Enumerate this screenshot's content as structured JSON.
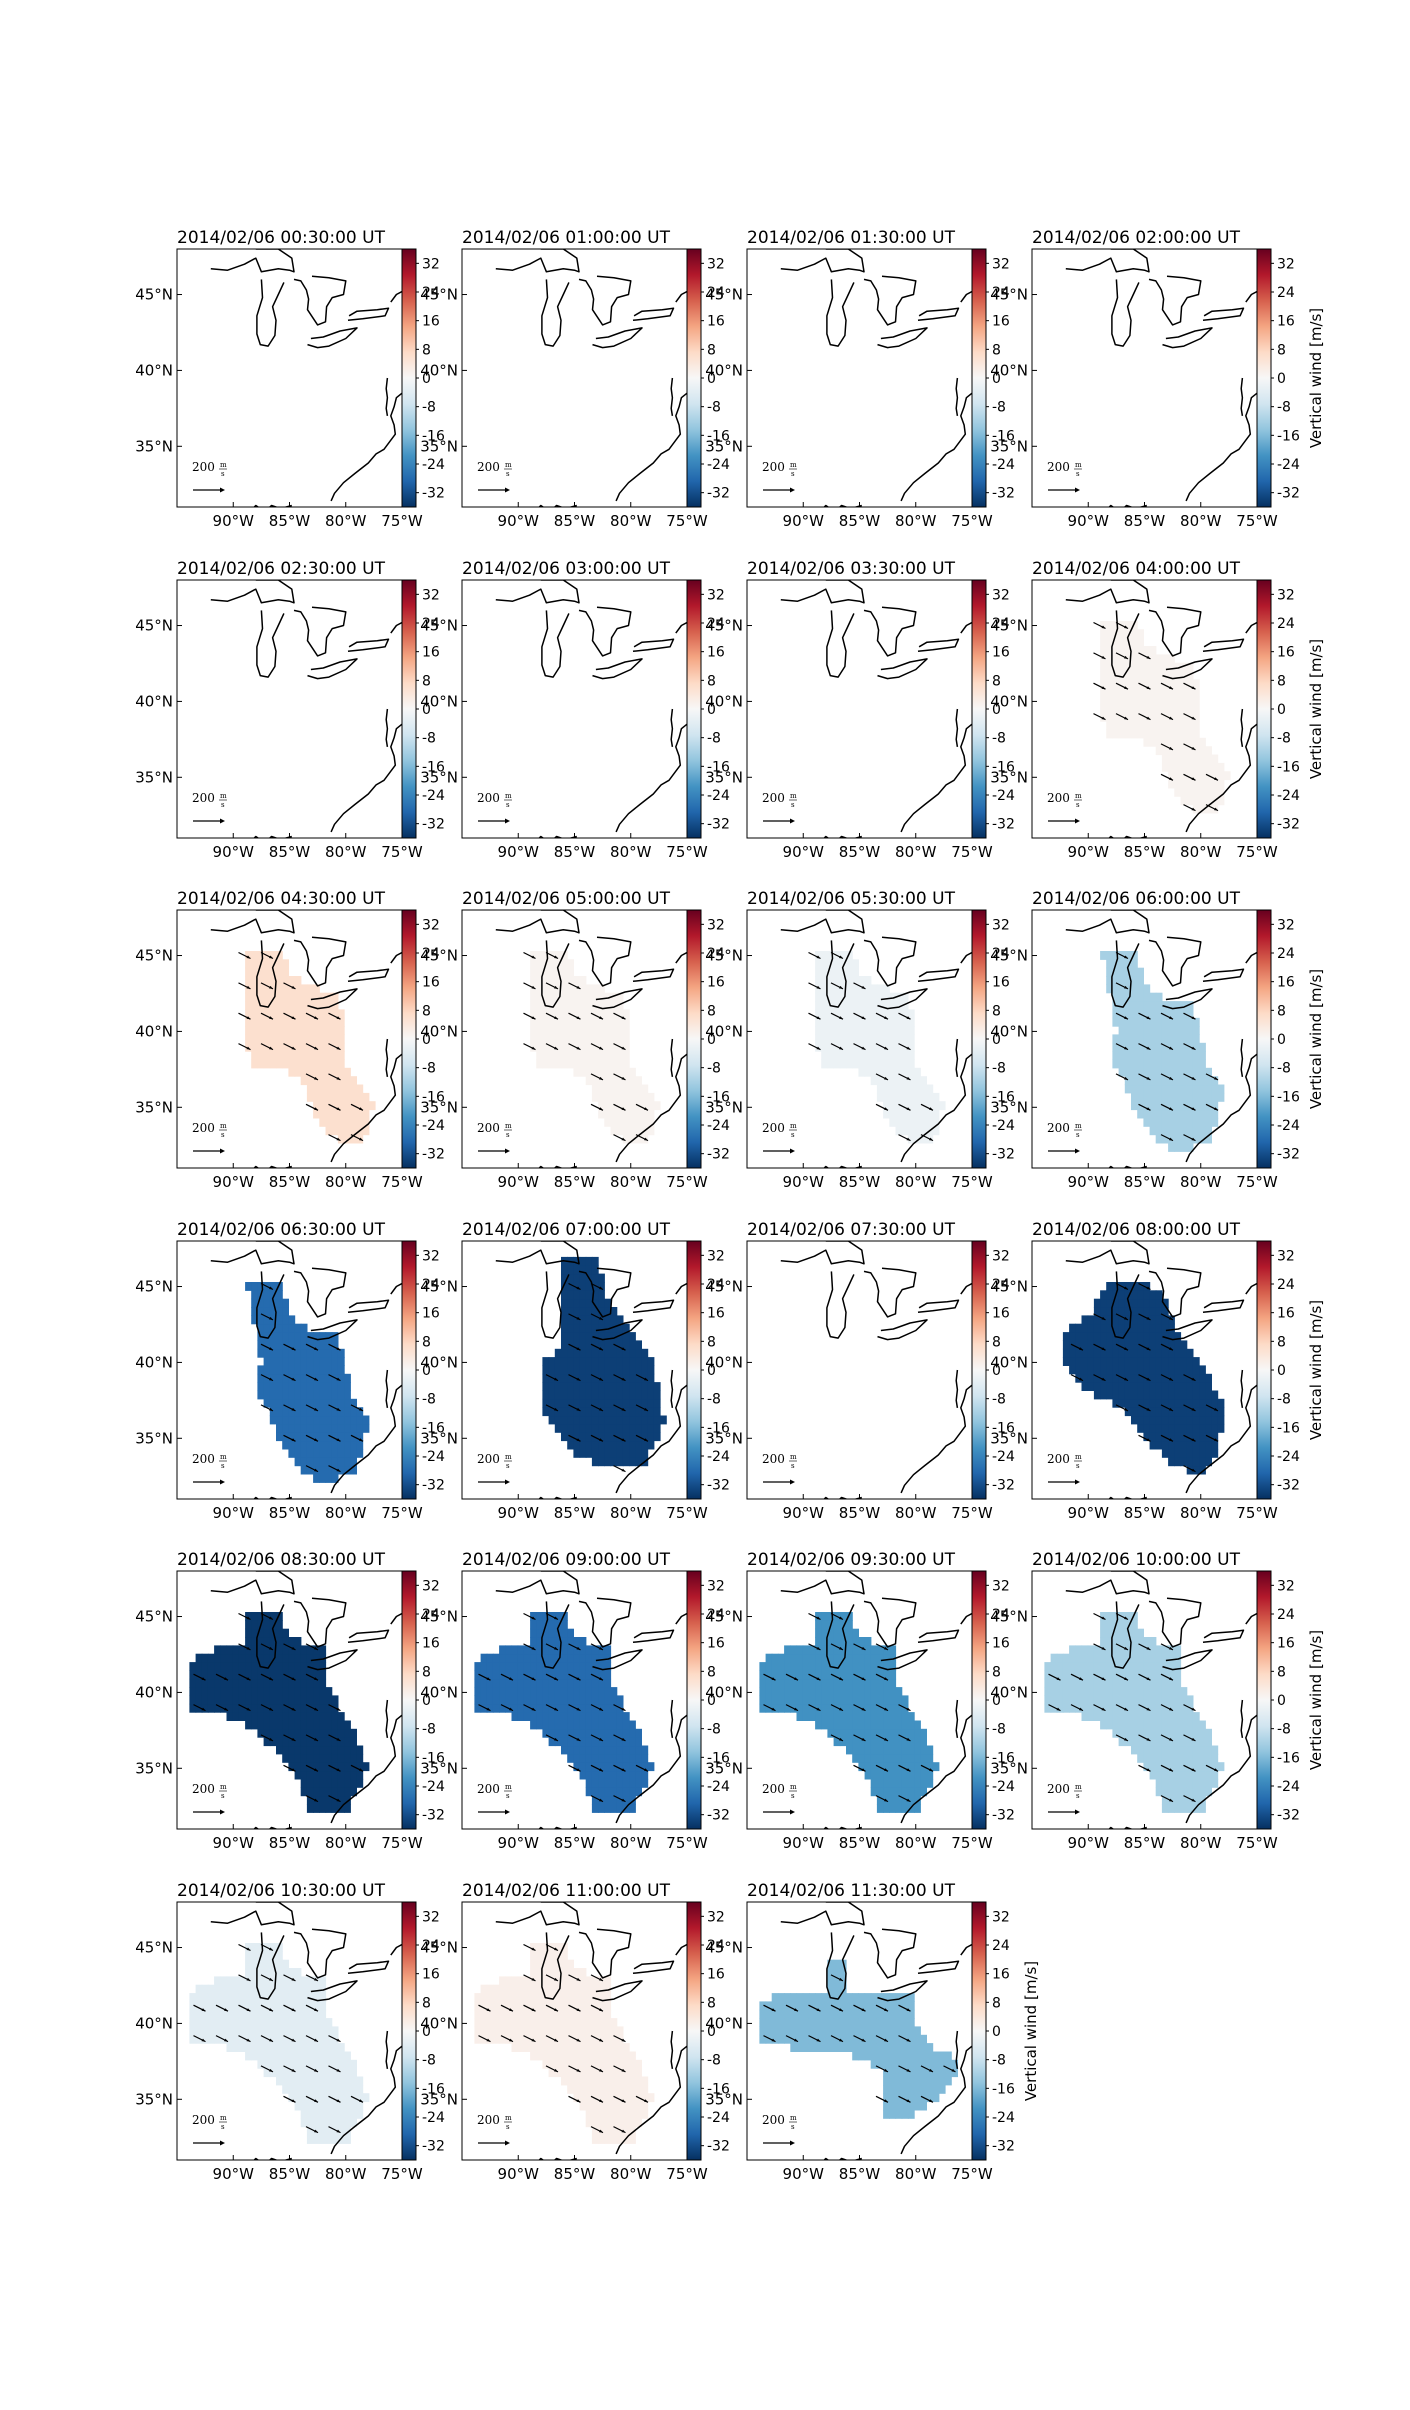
{
  "figure": {
    "colorbar_label": "Vertical wind [m/s]",
    "colorbar_ticks": [
      32,
      24,
      16,
      8,
      0,
      -8,
      -16,
      -24,
      -32
    ],
    "vrange": [
      -36,
      36
    ],
    "colormap": [
      "#053061",
      "#2166ac",
      "#4393c3",
      "#92c5de",
      "#d1e5f0",
      "#f7f7f7",
      "#fddbc7",
      "#f4a582",
      "#d6604d",
      "#b2182b",
      "#67001f"
    ],
    "lon_ticks": [
      "90°W",
      "85°W",
      "80°W",
      "75°W"
    ],
    "lat_ticks": [
      "45°N",
      "40°N",
      "35°N"
    ],
    "scale_label": "200",
    "scale_unit_num": "m",
    "scale_unit_den": "s",
    "map_extent": {
      "lon": [
        -95,
        -75
      ],
      "lat": [
        31,
        48
      ]
    }
  },
  "chart_data": [
    {
      "type": "heatmap",
      "title": "2014/02/06 00:30:00 UT",
      "wind": null,
      "region": "none"
    },
    {
      "type": "heatmap",
      "title": "2014/02/06 01:00:00 UT",
      "wind": null,
      "region": "none"
    },
    {
      "type": "heatmap",
      "title": "2014/02/06 01:30:00 UT",
      "wind": null,
      "region": "none"
    },
    {
      "type": "heatmap",
      "title": "2014/02/06 02:00:00 UT",
      "wind": null,
      "region": "none"
    },
    {
      "type": "heatmap",
      "title": "2014/02/06 02:30:00 UT",
      "wind": null,
      "region": "none"
    },
    {
      "type": "heatmap",
      "title": "2014/02/06 03:00:00 UT",
      "wind": null,
      "region": "none"
    },
    {
      "type": "heatmap",
      "title": "2014/02/06 03:30:00 UT",
      "wind": null,
      "region": "none"
    },
    {
      "type": "heatmap",
      "title": "2014/02/06 04:00:00 UT",
      "wind": 1,
      "region": "A"
    },
    {
      "type": "heatmap",
      "title": "2014/02/06 04:30:00 UT",
      "wind": 6,
      "region": "A"
    },
    {
      "type": "heatmap",
      "title": "2014/02/06 05:00:00 UT",
      "wind": 1,
      "region": "A"
    },
    {
      "type": "heatmap",
      "title": "2014/02/06 05:30:00 UT",
      "wind": -2,
      "region": "A"
    },
    {
      "type": "heatmap",
      "title": "2014/02/06 06:00:00 UT",
      "wind": -12,
      "region": "B"
    },
    {
      "type": "heatmap",
      "title": "2014/02/06 06:30:00 UT",
      "wind": -28,
      "region": "B"
    },
    {
      "type": "heatmap",
      "title": "2014/02/06 07:00:00 UT",
      "wind": -34,
      "region": "C"
    },
    {
      "type": "heatmap",
      "title": "2014/02/06 07:30:00 UT",
      "wind": null,
      "region": "none"
    },
    {
      "type": "heatmap",
      "title": "2014/02/06 08:00:00 UT",
      "wind": -34,
      "region": "D"
    },
    {
      "type": "heatmap",
      "title": "2014/02/06 08:30:00 UT",
      "wind": -35,
      "region": "E"
    },
    {
      "type": "heatmap",
      "title": "2014/02/06 09:00:00 UT",
      "wind": -28,
      "region": "E"
    },
    {
      "type": "heatmap",
      "title": "2014/02/06 09:30:00 UT",
      "wind": -22,
      "region": "E"
    },
    {
      "type": "heatmap",
      "title": "2014/02/06 10:00:00 UT",
      "wind": -12,
      "region": "E"
    },
    {
      "type": "heatmap",
      "title": "2014/02/06 10:30:00 UT",
      "wind": -4,
      "region": "E"
    },
    {
      "type": "heatmap",
      "title": "2014/02/06 11:00:00 UT",
      "wind": 2,
      "region": "E"
    },
    {
      "type": "heatmap",
      "title": "2014/02/06 11:30:00 UT",
      "wind": -16,
      "region": "F"
    }
  ]
}
